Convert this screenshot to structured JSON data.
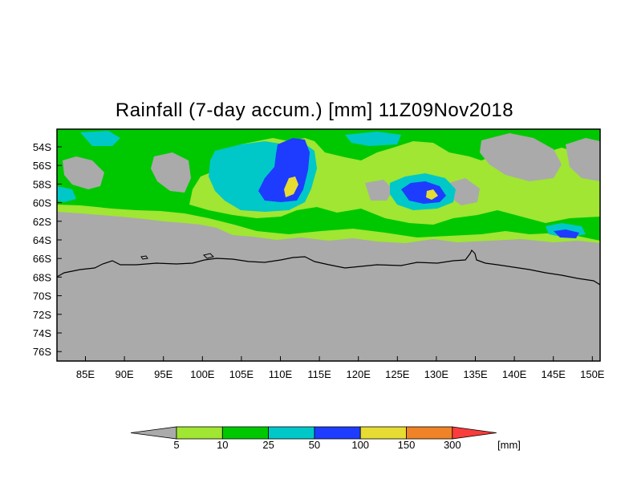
{
  "title": "Rainfall (7-day accum.) [mm] 11Z09Nov2018",
  "map": {
    "lon_labels": [
      "85E",
      "90E",
      "95E",
      "100E",
      "105E",
      "110E",
      "115E",
      "120E",
      "125E",
      "130E",
      "135E",
      "140E",
      "145E",
      "150E"
    ],
    "lat_labels": [
      "54S",
      "56S",
      "58S",
      "60S",
      "62S",
      "64S",
      "66S",
      "68S",
      "70S",
      "72S",
      "74S",
      "76S"
    ],
    "no_data_color": "#aaaaaa",
    "coastline_color": "#000000"
  },
  "colorbar": {
    "colors": [
      "#aaaaaa",
      "#a0e632",
      "#00c800",
      "#00c8c8",
      "#1e3cff",
      "#e6dc32",
      "#f08228",
      "#fa3c3c"
    ],
    "labels": [
      "5",
      "10",
      "25",
      "50",
      "100",
      "150",
      "300"
    ],
    "unit": "[mm]"
  }
}
